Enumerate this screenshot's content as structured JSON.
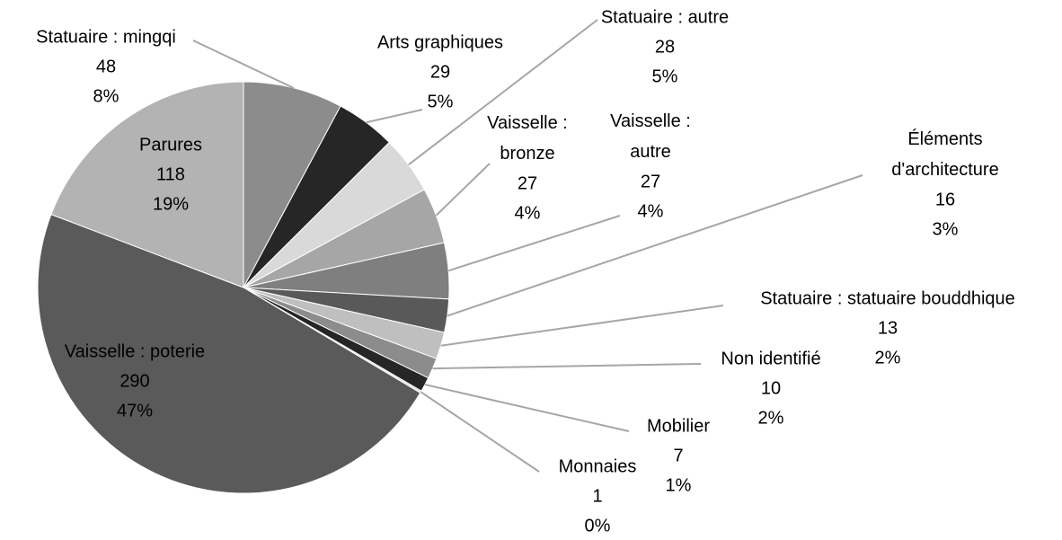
{
  "chart_data": {
    "type": "pie",
    "categories": [
      "Statuaire : mingqi",
      "Arts graphiques",
      "Statuaire : autre",
      "Vaisselle : bronze",
      "Vaisselle : autre",
      "Éléments d'architecture",
      "Statuaire : statuaire bouddhique",
      "Non identifié",
      "Mobilier",
      "Monnaies",
      "Vaisselle : poterie",
      "Parures"
    ],
    "values": [
      48,
      29,
      28,
      27,
      27,
      16,
      13,
      10,
      7,
      1,
      290,
      118
    ],
    "percent_labels": [
      "8%",
      "5%",
      "5%",
      "4%",
      "4%",
      "3%",
      "2%",
      "2%",
      "1%",
      "0%",
      "47%",
      "19%"
    ],
    "colors": [
      "#8c8c8c",
      "#262626",
      "#d9d9d9",
      "#a6a6a6",
      "#7f7f7f",
      "#595959",
      "#bfbfbf",
      "#8c8c8c",
      "#262626",
      "#d9d9d9",
      "#5a5a5a",
      "#b3b3b3"
    ]
  }
}
